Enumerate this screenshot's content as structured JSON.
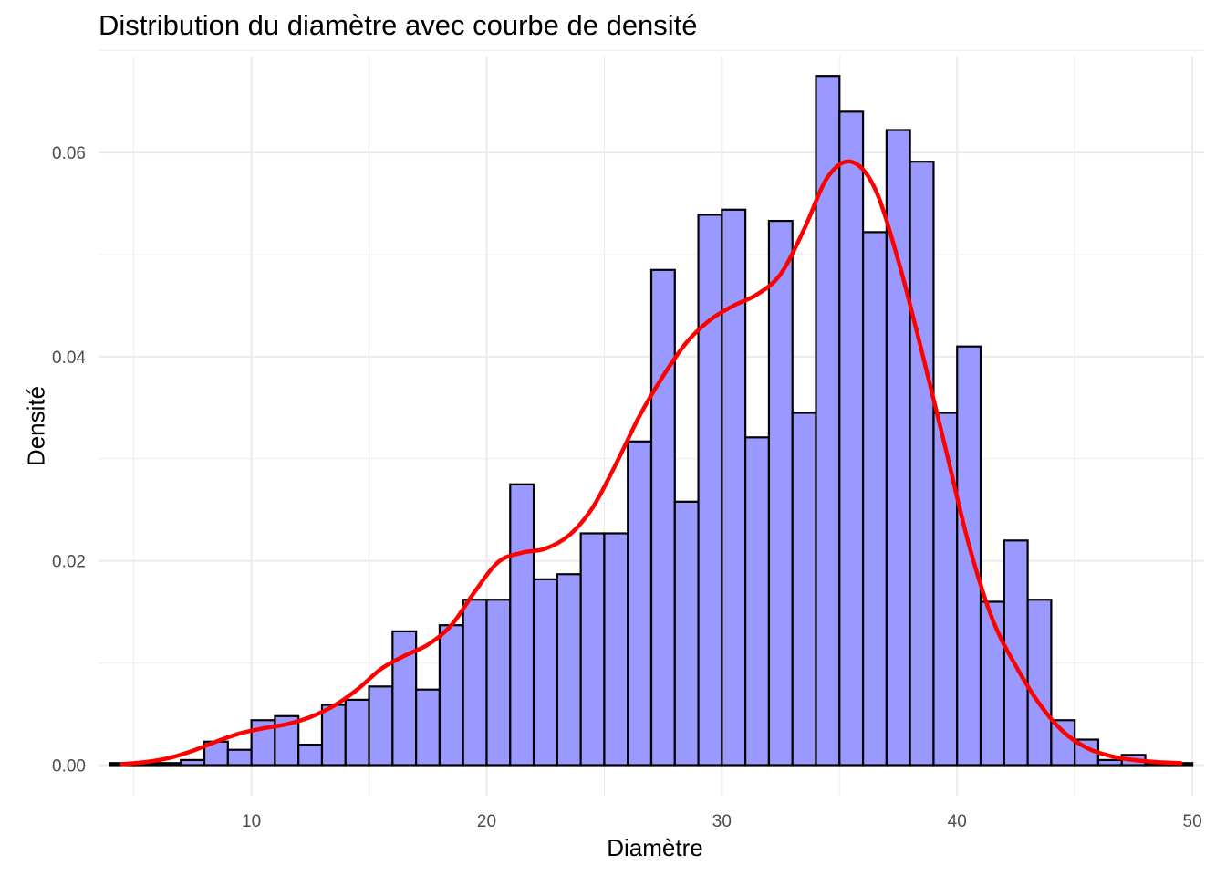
{
  "chart_data": {
    "type": "bar",
    "title": "Distribution du diamètre  avec courbe de densité",
    "xlabel": "Diamètre",
    "ylabel": "Densité",
    "xlim": [
      3.5,
      50.5
    ],
    "ylim": [
      0,
      0.0685
    ],
    "x_ticks": [
      10,
      20,
      30,
      40,
      50
    ],
    "x_tick_labels": [
      "10",
      "20",
      "30",
      "40",
      "50"
    ],
    "y_ticks": [
      0,
      0.02,
      0.04,
      0.06
    ],
    "y_tick_labels": [
      "0.00",
      "0.02",
      "0.04",
      "0.06"
    ],
    "grid": true,
    "legend": "none",
    "bin_width": 1,
    "bin_starts": [
      4,
      5,
      6,
      7,
      8,
      9,
      10,
      11,
      12,
      13,
      14,
      15,
      16,
      17,
      18,
      19,
      20,
      21,
      22,
      23,
      24,
      25,
      26,
      27,
      28,
      29,
      30,
      31,
      32,
      33,
      34,
      35,
      36,
      37,
      38,
      39,
      40,
      41,
      42,
      43,
      44,
      45,
      46,
      47,
      48,
      49
    ],
    "values": [
      0.0002,
      0.0002,
      0.0002,
      0.0005,
      0.0023,
      0.0015,
      0.0044,
      0.0048,
      0.002,
      0.0059,
      0.0064,
      0.0077,
      0.0131,
      0.0074,
      0.0137,
      0.0162,
      0.0162,
      0.0275,
      0.0182,
      0.0187,
      0.0227,
      0.0227,
      0.0317,
      0.0485,
      0.0258,
      0.0539,
      0.0544,
      0.0321,
      0.0533,
      0.0345,
      0.0675,
      0.064,
      0.0522,
      0.0622,
      0.0591,
      0.0345,
      0.041,
      0.016,
      0.022,
      0.0162,
      0.0044,
      0.0025,
      0.0005,
      0.001,
      0.0002,
      0.0002
    ],
    "density_curve": {
      "x": [
        4.5,
        5.5,
        6.5,
        7.5,
        8.5,
        9.5,
        10.5,
        11.5,
        12.5,
        13.5,
        14.5,
        15.5,
        16.5,
        17.5,
        18.5,
        19.5,
        20.5,
        21.5,
        22.5,
        23.5,
        24.5,
        25.5,
        26.5,
        27.5,
        28.5,
        29.5,
        30.5,
        31.5,
        32.5,
        33.5,
        34.5,
        35.5,
        36.5,
        37.5,
        38.5,
        39.5,
        40.5,
        41.5,
        42.5,
        43.5,
        44.5,
        45.5,
        46.5,
        47.5,
        48.5,
        49.5
      ],
      "y": [
        0.0001,
        0.0003,
        0.0007,
        0.0014,
        0.0023,
        0.0031,
        0.0036,
        0.004,
        0.0047,
        0.0058,
        0.0074,
        0.0094,
        0.0107,
        0.0118,
        0.0137,
        0.017,
        0.0199,
        0.0208,
        0.0212,
        0.0225,
        0.0252,
        0.0295,
        0.0342,
        0.0381,
        0.0414,
        0.0436,
        0.045,
        0.0461,
        0.0481,
        0.0525,
        0.0576,
        0.0591,
        0.0565,
        0.0494,
        0.0405,
        0.0311,
        0.0216,
        0.0143,
        0.0097,
        0.006,
        0.0033,
        0.0017,
        0.0009,
        0.0005,
        0.0003,
        0.0002
      ]
    },
    "colors": {
      "bar_fill": "#9999ff",
      "bar_stroke": "#000000",
      "curve": "#ff0000",
      "grid": "#ebebeb"
    }
  }
}
